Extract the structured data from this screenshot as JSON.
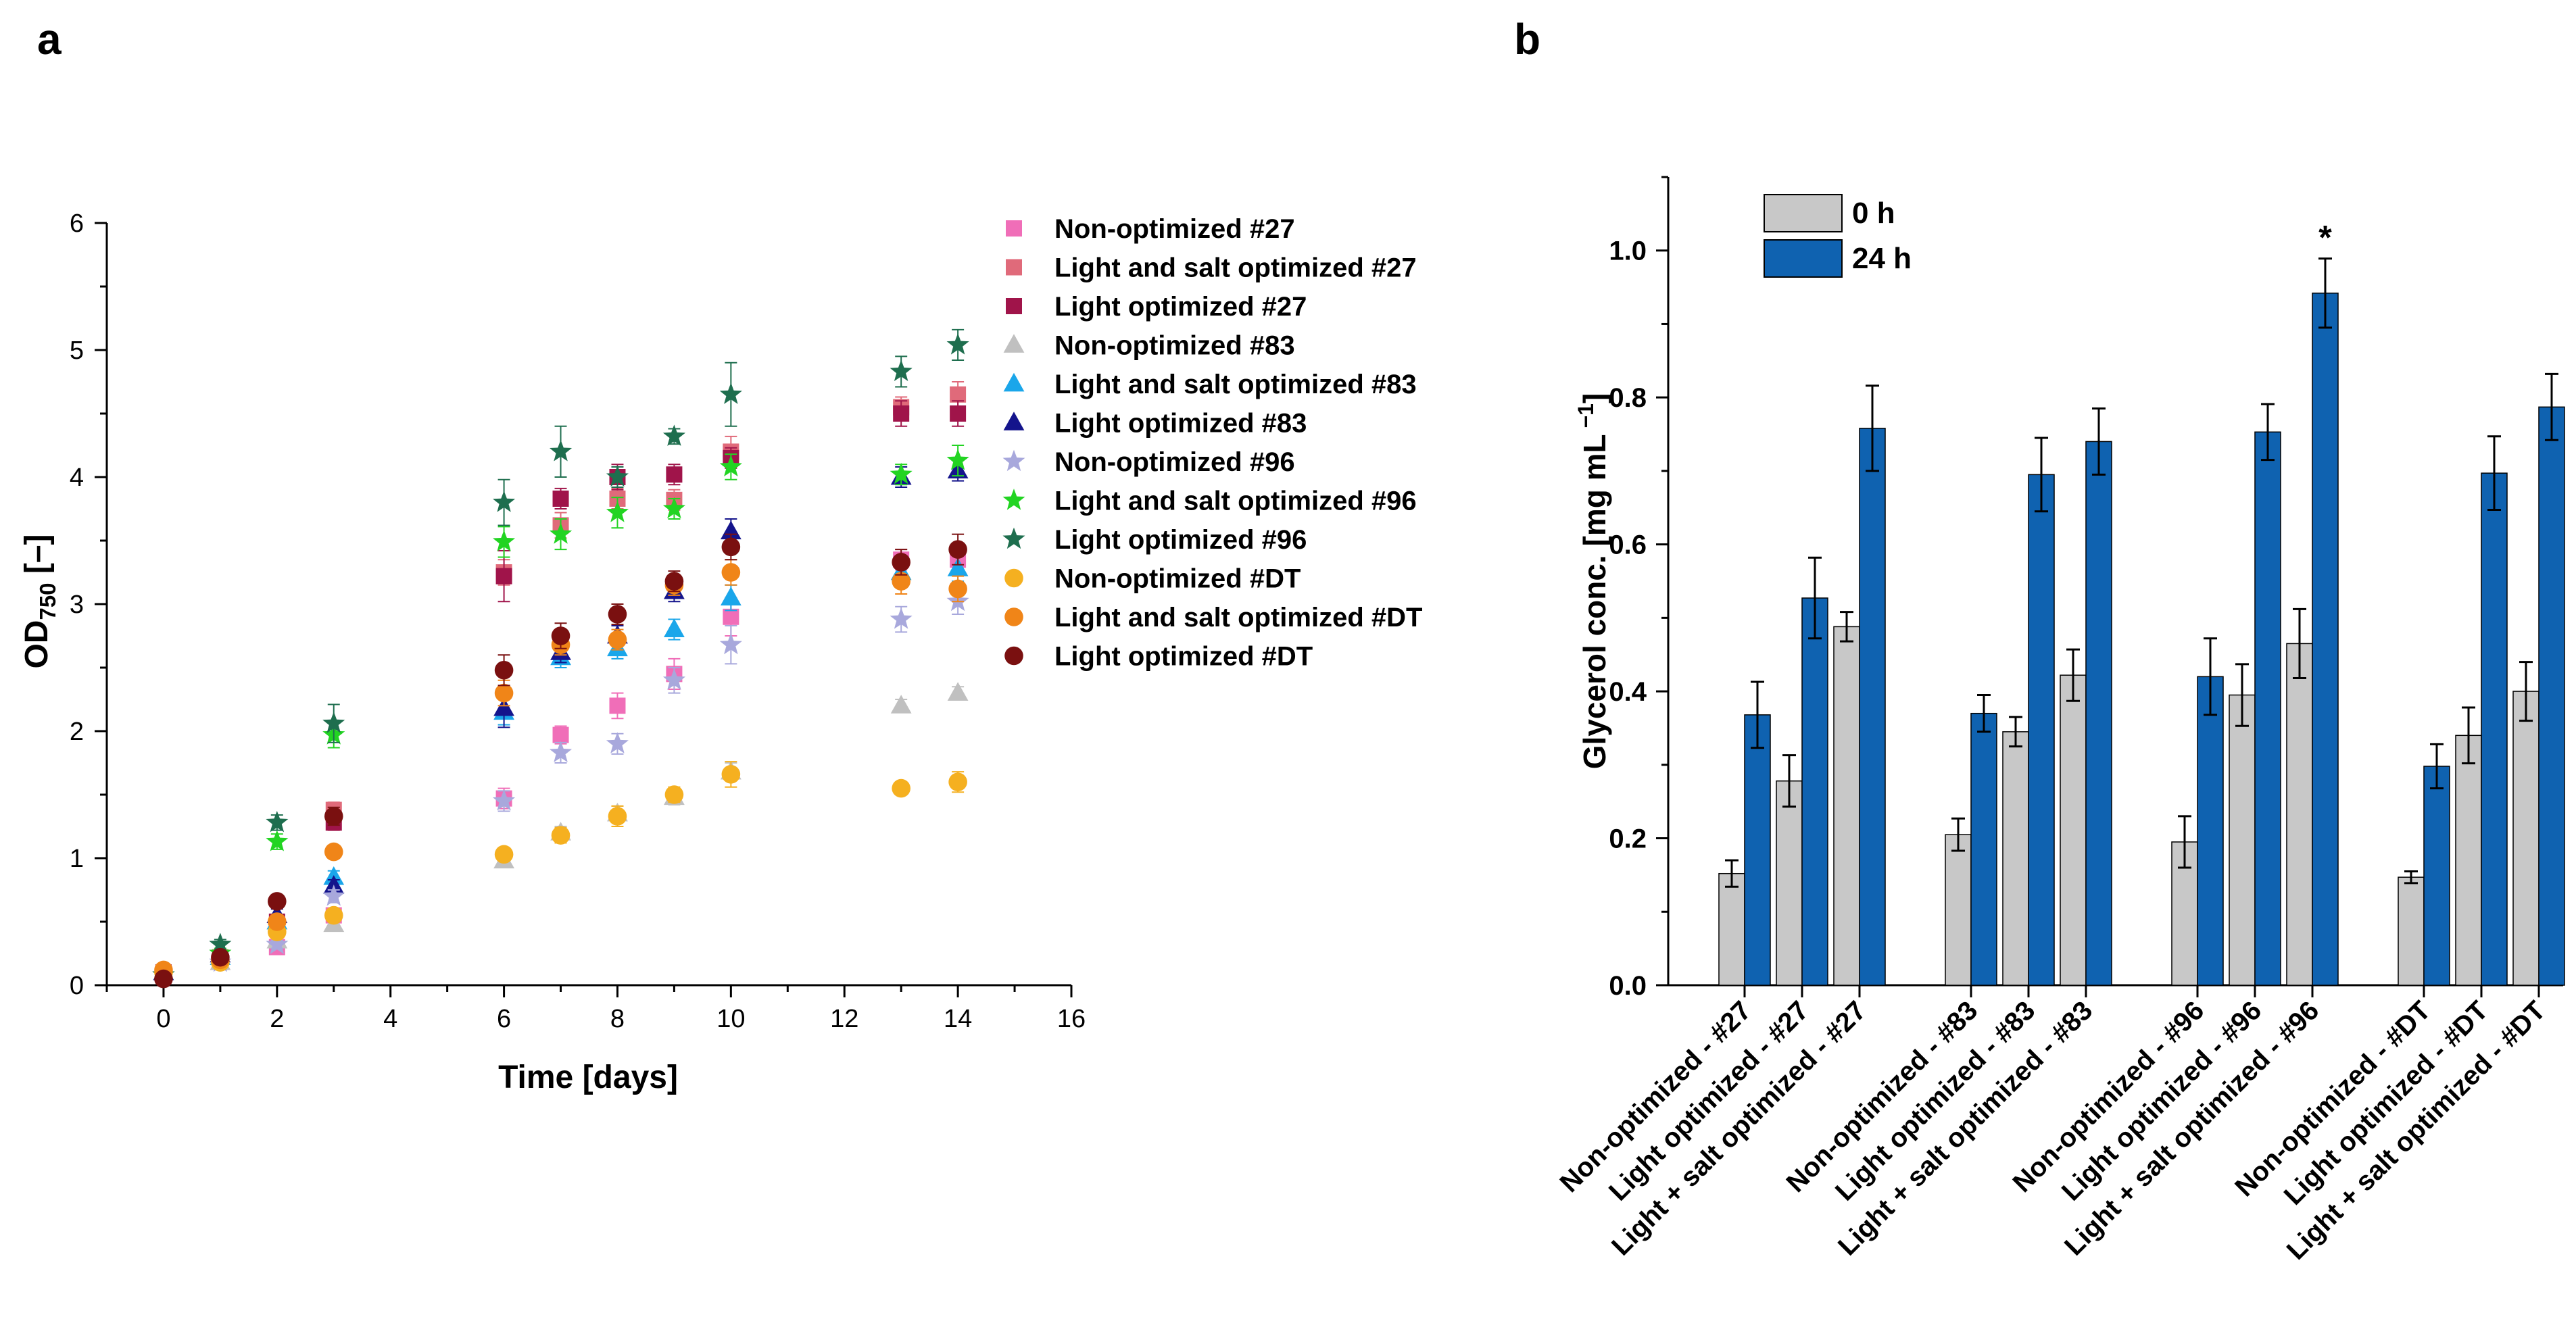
{
  "panels": {
    "a_label": "a",
    "b_label": "b"
  },
  "chart_data": [
    {
      "type": "scatter",
      "panel": "a",
      "title": "",
      "ylabel_main": "OD",
      "ylabel_sub": "750",
      "ylabel_tail": " [–]",
      "xlabel": "Time [days]",
      "xlim": [
        -1,
        16
      ],
      "ylim": [
        0,
        6
      ],
      "xticks": [
        "0",
        "2",
        "4",
        "6",
        "8",
        "10",
        "12",
        "14",
        "16"
      ],
      "yticks": [
        "0",
        "1",
        "2",
        "3",
        "4",
        "5",
        "6"
      ],
      "legend_position": "top-right",
      "series": [
        {
          "name": "Non-optimized #27",
          "marker": "square",
          "color": "#f06eb8",
          "x": [
            0,
            1,
            2,
            3,
            6,
            7,
            8,
            9,
            10,
            13,
            14
          ],
          "y": [
            0.1,
            0.2,
            0.3,
            0.55,
            1.47,
            1.97,
            2.2,
            2.45,
            2.9,
            3.35,
            3.35
          ],
          "err": [
            0.02,
            0.03,
            0.04,
            0.05,
            0.08,
            0.07,
            0.1,
            0.12,
            0.15,
            0.08,
            0.1
          ]
        },
        {
          "name": "Light and salt optimized #27",
          "marker": "square",
          "color": "#e06a7a",
          "x": [
            0,
            1,
            2,
            3,
            6,
            7,
            8,
            9,
            10,
            13,
            14
          ],
          "y": [
            0.1,
            0.22,
            0.45,
            1.38,
            3.25,
            3.62,
            3.83,
            3.82,
            4.2,
            4.55,
            4.65
          ],
          "err": [
            0.02,
            0.03,
            0.05,
            0.06,
            0.1,
            0.1,
            0.08,
            0.08,
            0.12,
            0.08,
            0.1
          ]
        },
        {
          "name": "Light optimized #27",
          "marker": "square",
          "color": "#a0144a",
          "x": [
            0,
            1,
            2,
            3,
            6,
            7,
            8,
            9,
            10,
            13,
            14
          ],
          "y": [
            0.1,
            0.2,
            0.5,
            1.28,
            3.22,
            3.83,
            4.0,
            4.02,
            4.15,
            4.5,
            4.5
          ],
          "err": [
            0.02,
            0.03,
            0.05,
            0.06,
            0.2,
            0.08,
            0.1,
            0.08,
            0.08,
            0.1,
            0.1
          ]
        },
        {
          "name": "Non-optimized  #83",
          "marker": "triangle",
          "color": "#c0c0c0",
          "x": [
            0,
            1,
            2,
            3,
            6,
            7,
            8,
            9,
            10,
            13,
            14
          ],
          "y": [
            0.1,
            0.18,
            0.35,
            0.48,
            0.98,
            1.2,
            1.35,
            1.48,
            1.68,
            2.2,
            2.3
          ],
          "err": [
            0.02,
            0.02,
            0.03,
            0.04,
            0.05,
            0.05,
            0.06,
            0.06,
            0.07,
            0.05,
            0.05
          ]
        },
        {
          "name": "Light and salt optimized #83",
          "marker": "triangle",
          "color": "#1aa6ea",
          "x": [
            0,
            1,
            2,
            3,
            6,
            7,
            8,
            9,
            10,
            13,
            14
          ],
          "y": [
            0.1,
            0.22,
            0.5,
            0.85,
            2.15,
            2.58,
            2.65,
            2.8,
            3.05,
            3.25,
            3.28
          ],
          "err": [
            0.02,
            0.03,
            0.04,
            0.05,
            0.1,
            0.08,
            0.08,
            0.08,
            0.1,
            0.1,
            0.1
          ]
        },
        {
          "name": "Light optimized #83",
          "marker": "triangle",
          "color": "#14148c",
          "x": [
            0,
            1,
            2,
            3,
            6,
            7,
            8,
            9,
            10,
            13,
            14
          ],
          "y": [
            0.1,
            0.24,
            0.55,
            0.78,
            2.18,
            2.62,
            2.75,
            3.1,
            3.57,
            4.0,
            4.05
          ],
          "err": [
            0.02,
            0.03,
            0.05,
            0.05,
            0.15,
            0.08,
            0.08,
            0.08,
            0.1,
            0.08,
            0.08
          ]
        },
        {
          "name": "Non-optimized #96",
          "marker": "star",
          "color": "#a8a8dc",
          "x": [
            0,
            1,
            2,
            3,
            6,
            7,
            8,
            9,
            10,
            13,
            14
          ],
          "y": [
            0.08,
            0.18,
            0.32,
            0.7,
            1.45,
            1.83,
            1.9,
            2.4,
            2.68,
            2.88,
            3.02
          ],
          "err": [
            0.02,
            0.02,
            0.03,
            0.05,
            0.08,
            0.08,
            0.08,
            0.1,
            0.15,
            0.1,
            0.1
          ]
        },
        {
          "name": "Light and salt optimized #96",
          "marker": "star",
          "color": "#22d422",
          "x": [
            0,
            1,
            2,
            3,
            6,
            7,
            8,
            9,
            10,
            13,
            14
          ],
          "y": [
            0.08,
            0.25,
            1.13,
            1.97,
            3.49,
            3.55,
            3.72,
            3.75,
            4.08,
            4.02,
            4.13
          ],
          "err": [
            0.02,
            0.04,
            0.06,
            0.1,
            0.12,
            0.12,
            0.12,
            0.08,
            0.1,
            0.08,
            0.12
          ]
        },
        {
          "name": "Light optimized #96",
          "marker": "star",
          "color": "#1e6e4e",
          "x": [
            0,
            1,
            2,
            3,
            6,
            7,
            8,
            9,
            10,
            13,
            14
          ],
          "y": [
            0.08,
            0.32,
            1.28,
            2.06,
            3.8,
            4.2,
            4.0,
            4.32,
            4.65,
            4.83,
            5.04
          ],
          "err": [
            0.02,
            0.04,
            0.06,
            0.15,
            0.18,
            0.2,
            0.08,
            0.06,
            0.25,
            0.12,
            0.12
          ]
        },
        {
          "name": "Non-optimized #DT",
          "marker": "circle",
          "color": "#f5b020",
          "x": [
            0,
            1,
            2,
            3,
            6,
            7,
            8,
            9,
            10,
            13,
            14
          ],
          "y": [
            0.1,
            0.18,
            0.42,
            0.55,
            1.03,
            1.18,
            1.33,
            1.5,
            1.66,
            1.55,
            1.6
          ],
          "err": [
            0.02,
            0.02,
            0.04,
            0.05,
            0.05,
            0.06,
            0.08,
            0.06,
            0.1,
            0.05,
            0.08
          ]
        },
        {
          "name": "Light and salt optimized #DT",
          "marker": "circle",
          "color": "#f08518",
          "x": [
            0,
            1,
            2,
            3,
            6,
            7,
            8,
            9,
            10,
            13,
            14
          ],
          "y": [
            0.12,
            0.2,
            0.5,
            1.05,
            2.3,
            2.68,
            2.72,
            3.15,
            3.25,
            3.18,
            3.12
          ],
          "err": [
            0.02,
            0.03,
            0.05,
            0.05,
            0.1,
            0.08,
            0.08,
            0.08,
            0.1,
            0.1,
            0.1
          ]
        },
        {
          "name": "Light optimized #DT",
          "marker": "circle",
          "color": "#7a1010",
          "x": [
            0,
            1,
            2,
            3,
            6,
            7,
            8,
            9,
            10,
            13,
            14
          ],
          "y": [
            0.05,
            0.22,
            0.66,
            1.33,
            2.48,
            2.75,
            2.92,
            3.18,
            3.45,
            3.33,
            3.43
          ],
          "err": [
            0.02,
            0.03,
            0.05,
            0.07,
            0.12,
            0.1,
            0.08,
            0.08,
            0.1,
            0.1,
            0.12
          ]
        }
      ]
    },
    {
      "type": "bar",
      "panel": "b",
      "ylabel": "Glycerol conc.  [mg mL",
      "ylabel_sup": " −1",
      "ylabel_end": "]",
      "ylim": [
        0,
        1.1
      ],
      "yticks": [
        "0.0",
        "0.2",
        "0.4",
        "0.6",
        "0.8",
        "1.0"
      ],
      "legend_position": "top-left",
      "series": [
        {
          "name": "0 h",
          "color": "#c8c8c8"
        },
        {
          "name": "24 h",
          "color": "#0f62b0"
        }
      ],
      "groups": [
        {
          "bars": [
            {
              "label": "Non-optimized - #27",
              "h0": 0.152,
              "e0": 0.018,
              "h24": 0.368,
              "e24": 0.045
            },
            {
              "label": "Light optimized - #27",
              "h0": 0.278,
              "e0": 0.035,
              "h24": 0.527,
              "e24": 0.055
            },
            {
              "label": "Light + salt optimized - #27",
              "h0": 0.488,
              "e0": 0.02,
              "h24": 0.758,
              "e24": 0.058
            }
          ]
        },
        {
          "bars": [
            {
              "label": "Non-optimized - #83",
              "h0": 0.205,
              "e0": 0.022,
              "h24": 0.37,
              "e24": 0.025
            },
            {
              "label": "Light optimized - #83",
              "h0": 0.345,
              "e0": 0.02,
              "h24": 0.695,
              "e24": 0.05
            },
            {
              "label": "Light + salt optimized - #83",
              "h0": 0.422,
              "e0": 0.035,
              "h24": 0.74,
              "e24": 0.045
            }
          ]
        },
        {
          "bars": [
            {
              "label": "Non-optimized - #96",
              "h0": 0.195,
              "e0": 0.035,
              "h24": 0.42,
              "e24": 0.052
            },
            {
              "label": "Light optimized - #96",
              "h0": 0.395,
              "e0": 0.042,
              "h24": 0.753,
              "e24": 0.038
            },
            {
              "label": "Light + salt optimized - #96",
              "h0": 0.465,
              "e0": 0.047,
              "h24": 0.942,
              "e24": 0.047,
              "annotation": "*"
            }
          ]
        },
        {
          "bars": [
            {
              "label": "Non-optimized - #DT",
              "h0": 0.147,
              "e0": 0.008,
              "h24": 0.298,
              "e24": 0.03
            },
            {
              "label": "Light optimized - #DT",
              "h0": 0.34,
              "e0": 0.038,
              "h24": 0.697,
              "e24": 0.05
            },
            {
              "label": "Light + salt optimized - #DT",
              "h0": 0.4,
              "e0": 0.04,
              "h24": 0.787,
              "e24": 0.045
            }
          ]
        }
      ]
    }
  ]
}
